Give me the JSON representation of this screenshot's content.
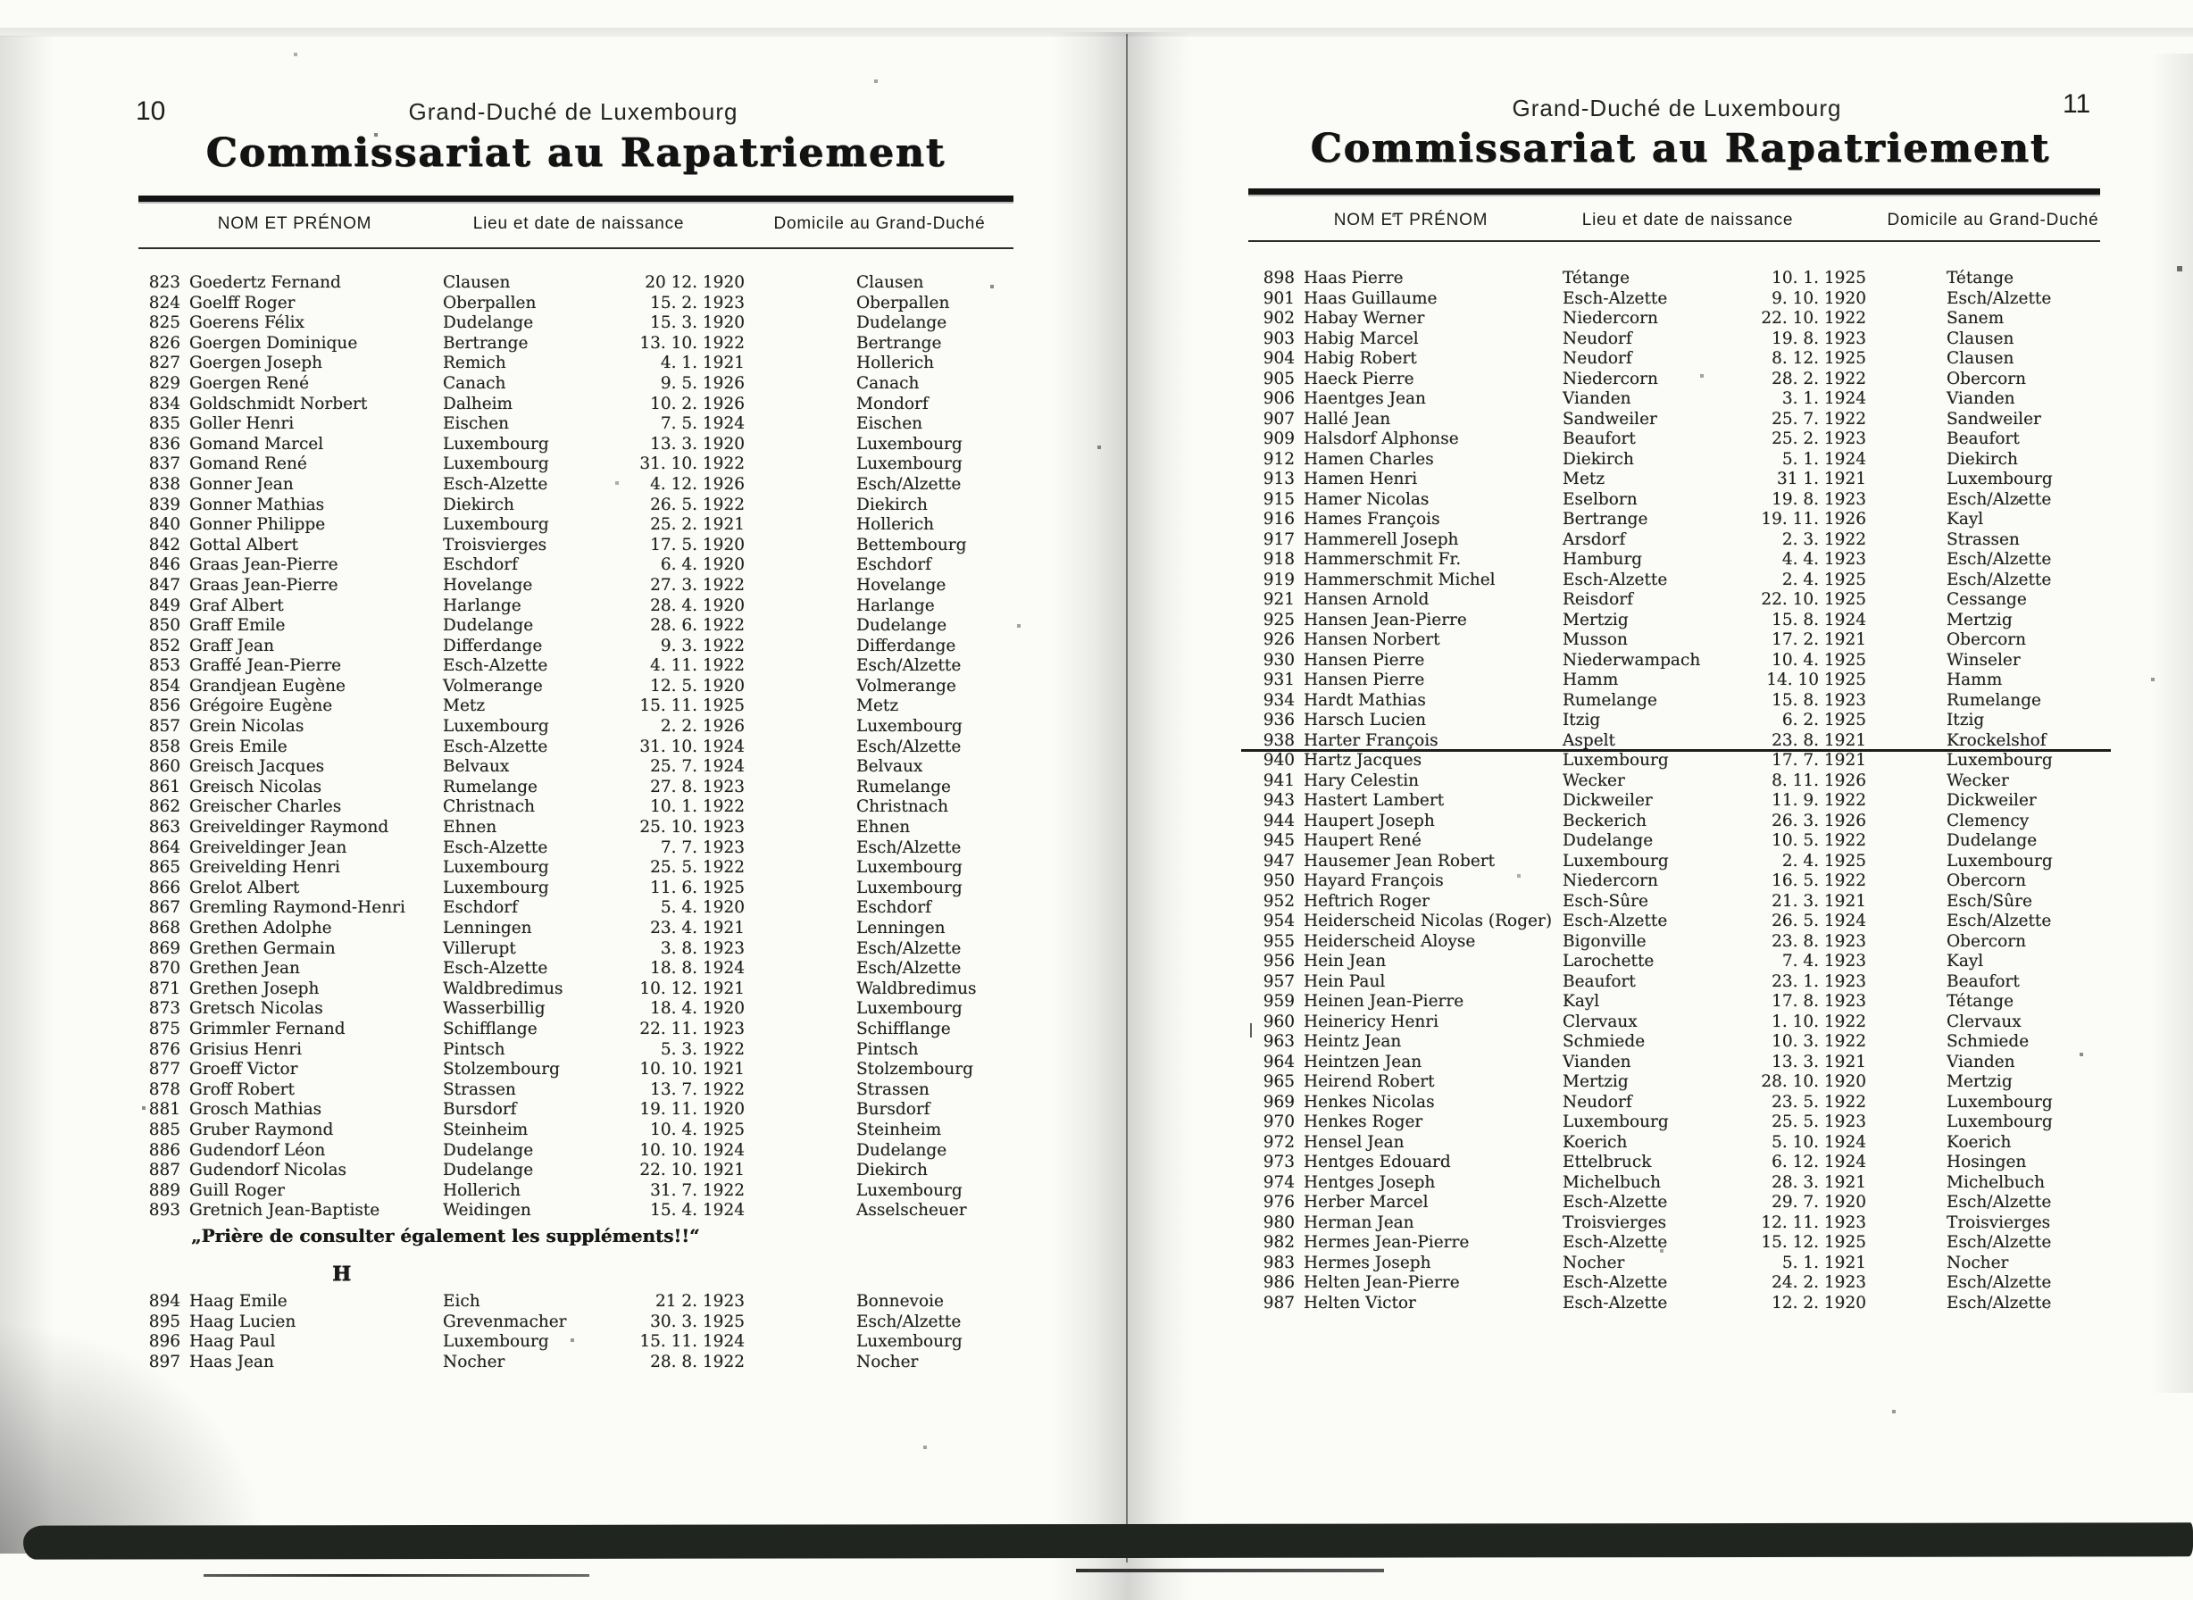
{
  "scan": {
    "left_page": {
      "page_number": "10",
      "header_subtitle": "Grand-Duché de Luxembourg",
      "title": "Commissariat au Rapatriement",
      "columns": [
        "NOM ET PRÉNOM",
        "Lieu et date de naissance",
        "Domicile au Grand-Duché"
      ],
      "rows": [
        [
          "823",
          "Goedertz Fernand",
          "Clausen",
          "20 12. 1920",
          "Clausen"
        ],
        [
          "824",
          "Goelff Roger",
          "Oberpallen",
          "15. 2. 1923",
          "Oberpallen"
        ],
        [
          "825",
          "Goerens Félix",
          "Dudelange",
          "15. 3. 1920",
          "Dudelange"
        ],
        [
          "826",
          "Goergen Dominique",
          "Bertrange",
          "13. 10. 1922",
          "Bertrange"
        ],
        [
          "827",
          "Goergen Joseph",
          "Remich",
          "4. 1. 1921",
          "Hollerich"
        ],
        [
          "829",
          "Goergen René",
          "Canach",
          "9. 5. 1926",
          "Canach"
        ],
        [
          "834",
          "Goldschmidt Norbert",
          "Dalheim",
          "10. 2. 1926",
          "Mondorf"
        ],
        [
          "835",
          "Goller Henri",
          "Eischen",
          "7. 5. 1924",
          "Eischen"
        ],
        [
          "836",
          "Gomand Marcel",
          "Luxembourg",
          "13. 3. 1920",
          "Luxembourg"
        ],
        [
          "837",
          "Gomand René",
          "Luxembourg",
          "31. 10. 1922",
          "Luxembourg"
        ],
        [
          "838",
          "Gonner Jean",
          "Esch-Alzette",
          "4. 12. 1926",
          "Esch/Alzette"
        ],
        [
          "839",
          "Gonner Mathias",
          "Diekirch",
          "26. 5. 1922",
          "Diekirch"
        ],
        [
          "840",
          "Gonner Philippe",
          "Luxembourg",
          "25. 2. 1921",
          "Hollerich"
        ],
        [
          "842",
          "Gottal Albert",
          "Troisvierges",
          "17. 5. 1920",
          "Bettembourg"
        ],
        [
          "846",
          "Graas Jean-Pierre",
          "Eschdorf",
          "6. 4. 1920",
          "Eschdorf"
        ],
        [
          "847",
          "Graas Jean-Pierre",
          "Hovelange",
          "27. 3. 1922",
          "Hovelange"
        ],
        [
          "849",
          "Graf Albert",
          "Harlange",
          "28. 4. 1920",
          "Harlange"
        ],
        [
          "850",
          "Graff Emile",
          "Dudelange",
          "28. 6. 1922",
          "Dudelange"
        ],
        [
          "852",
          "Graff Jean",
          "Differdange",
          "9. 3. 1922",
          "Differdange"
        ],
        [
          "853",
          "Graffé Jean-Pierre",
          "Esch-Alzette",
          "4. 11. 1922",
          "Esch/Alzette"
        ],
        [
          "854",
          "Grandjean Eugène",
          "Volmerange",
          "12. 5. 1920",
          "Volmerange"
        ],
        [
          "856",
          "Grégoire Eugène",
          "Metz",
          "15. 11. 1925",
          "Metz"
        ],
        [
          "857",
          "Grein Nicolas",
          "Luxembourg",
          "2. 2. 1926",
          "Luxembourg"
        ],
        [
          "858",
          "Greis Emile",
          "Esch-Alzette",
          "31. 10. 1924",
          "Esch/Alzette"
        ],
        [
          "860",
          "Greisch Jacques",
          "Belvaux",
          "25. 7. 1924",
          "Belvaux"
        ],
        [
          "861",
          "Greisch Nicolas",
          "Rumelange",
          "27. 8. 1923",
          "Rumelange"
        ],
        [
          "862",
          "Greischer Charles",
          "Christnach",
          "10. 1. 1922",
          "Christnach"
        ],
        [
          "863",
          "Greiveldinger Raymond",
          "Ehnen",
          "25. 10. 1923",
          "Ehnen"
        ],
        [
          "864",
          "Greiveldinger Jean",
          "Esch-Alzette",
          "7. 7. 1923",
          "Esch/Alzette"
        ],
        [
          "865",
          "Greivelding Henri",
          "Luxembourg",
          "25. 5. 1922",
          "Luxembourg"
        ],
        [
          "866",
          "Grelot Albert",
          "Luxembourg",
          "11. 6. 1925",
          "Luxembourg"
        ],
        [
          "867",
          "Gremling Raymond-Henri",
          "Eschdorf",
          "5. 4. 1920",
          "Eschdorf"
        ],
        [
          "868",
          "Grethen Adolphe",
          "Lenningen",
          "23. 4. 1921",
          "Lenningen"
        ],
        [
          "869",
          "Grethen Germain",
          "Villerupt",
          "3. 8. 1923",
          "Esch/Alzette"
        ],
        [
          "870",
          "Grethen Jean",
          "Esch-Alzette",
          "18. 8. 1924",
          "Esch/Alzette"
        ],
        [
          "871",
          "Grethen Joseph",
          "Waldbredimus",
          "10. 12. 1921",
          "Waldbredimus"
        ],
        [
          "873",
          "Gretsch Nicolas",
          "Wasserbillig",
          "18. 4. 1920",
          "Luxembourg"
        ],
        [
          "875",
          "Grimmler Fernand",
          "Schifflange",
          "22. 11. 1923",
          "Schifflange"
        ],
        [
          "876",
          "Grisius Henri",
          "Pintsch",
          "5. 3. 1922",
          "Pintsch"
        ],
        [
          "877",
          "Groeff Victor",
          "Stolzembourg",
          "10. 10. 1921",
          "Stolzembourg"
        ],
        [
          "878",
          "Groff Robert",
          "Strassen",
          "13. 7. 1922",
          "Strassen"
        ],
        [
          "881",
          "Grosch Mathias",
          "Bursdorf",
          "19. 11. 1920",
          "Bursdorf"
        ],
        [
          "885",
          "Gruber Raymond",
          "Steinheim",
          "10. 4. 1925",
          "Steinheim"
        ],
        [
          "886",
          "Gudendorf Léon",
          "Dudelange",
          "10. 10. 1924",
          "Dudelange"
        ],
        [
          "887",
          "Gudendorf Nicolas",
          "Dudelange",
          "22. 10. 1921",
          "Diekirch"
        ],
        [
          "889",
          "Guill Roger",
          "Hollerich",
          "31. 7. 1922",
          "Luxembourg"
        ],
        [
          "893",
          "Gretnich Jean-Baptiste",
          "Weidingen",
          "15. 4. 1924",
          "Asselscheuer"
        ]
      ],
      "note": "„Prière de consulter également les suppléments!!“",
      "section_letter": "H",
      "rows_after_note": [
        [
          "894",
          "Haag Emile",
          "Eich",
          "21 2. 1923",
          "Bonnevoie"
        ],
        [
          "895",
          "Haag Lucien",
          "Grevenmacher",
          "30. 3. 1925",
          "Esch/Alzette"
        ],
        [
          "896",
          "Haag Paul",
          "Luxembourg",
          "15. 11. 1924",
          "Luxembourg"
        ],
        [
          "897",
          "Haas Jean",
          "Nocher",
          "28. 8. 1922",
          "Nocher"
        ]
      ]
    },
    "right_page": {
      "page_number": "11",
      "header_subtitle": "Grand-Duché de Luxembourg",
      "title": "Commissariat au Rapatriement",
      "columns": [
        "NOM ET PRÉNOM",
        "Lieu et date de naissance",
        "Domicile au Grand-Duché"
      ],
      "separator_after_row": "938",
      "rows": [
        [
          "898",
          "Haas Pierre",
          "Tétange",
          "10. 1. 1925",
          "Tétange"
        ],
        [
          "901",
          "Haas Guillaume",
          "Esch-Alzette",
          "9. 10. 1920",
          "Esch/Alzette"
        ],
        [
          "902",
          "Habay Werner",
          "Niedercorn",
          "22. 10. 1922",
          "Sanem"
        ],
        [
          "903",
          "Habig Marcel",
          "Neudorf",
          "19. 8. 1923",
          "Clausen"
        ],
        [
          "904",
          "Habig Robert",
          "Neudorf",
          "8. 12. 1925",
          "Clausen"
        ],
        [
          "905",
          "Haeck Pierre",
          "Niedercorn",
          "28. 2. 1922",
          "Obercorn"
        ],
        [
          "906",
          "Haentges Jean",
          "Vianden",
          "3. 1. 1924",
          "Vianden"
        ],
        [
          "907",
          "Hallé Jean",
          "Sandweiler",
          "25. 7. 1922",
          "Sandweiler"
        ],
        [
          "909",
          "Halsdorf Alphonse",
          "Beaufort",
          "25. 2. 1923",
          "Beaufort"
        ],
        [
          "912",
          "Hamen Charles",
          "Diekirch",
          "5. 1. 1924",
          "Diekirch"
        ],
        [
          "913",
          "Hamen Henri",
          "Metz",
          "31 1. 1921",
          "Luxembourg"
        ],
        [
          "915",
          "Hamer Nicolas",
          "Eselborn",
          "19. 8. 1923",
          "Esch/Alzette"
        ],
        [
          "916",
          "Hames François",
          "Bertrange",
          "19. 11. 1926",
          "Kayl"
        ],
        [
          "917",
          "Hammerell Joseph",
          "Arsdorf",
          "2. 3. 1922",
          "Strassen"
        ],
        [
          "918",
          "Hammerschmit Fr.",
          "Hamburg",
          "4. 4. 1923",
          "Esch/Alzette"
        ],
        [
          "919",
          "Hammerschmit Michel",
          "Esch-Alzette",
          "2. 4. 1925",
          "Esch/Alzette"
        ],
        [
          "921",
          "Hansen Arnold",
          "Reisdorf",
          "22. 10. 1925",
          "Cessange"
        ],
        [
          "925",
          "Hansen Jean-Pierre",
          "Mertzig",
          "15. 8. 1924",
          "Mertzig"
        ],
        [
          "926",
          "Hansen Norbert",
          "Musson",
          "17. 2. 1921",
          "Obercorn"
        ],
        [
          "930",
          "Hansen Pierre",
          "Niederwampach",
          "10. 4. 1925",
          "Winseler"
        ],
        [
          "931",
          "Hansen Pierre",
          "Hamm",
          "14. 10 1925",
          "Hamm"
        ],
        [
          "934",
          "Hardt Mathias",
          "Rumelange",
          "15. 8. 1923",
          "Rumelange"
        ],
        [
          "936",
          "Harsch Lucien",
          "Itzig",
          "6. 2. 1925",
          "Itzig"
        ],
        [
          "938",
          "Harter François",
          "Aspelt",
          "23. 8. 1921",
          "Krockelshof"
        ],
        [
          "940",
          "Hartz Jacques",
          "Luxembourg",
          "17. 7. 1921",
          "Luxembourg"
        ],
        [
          "941",
          "Hary Celestin",
          "Wecker",
          "8. 11. 1926",
          "Wecker"
        ],
        [
          "943",
          "Hastert Lambert",
          "Dickweiler",
          "11. 9. 1922",
          "Dickweiler"
        ],
        [
          "944",
          "Haupert Joseph",
          "Beckerich",
          "26. 3. 1926",
          "Clemency"
        ],
        [
          "945",
          "Haupert René",
          "Dudelange",
          "10. 5. 1922",
          "Dudelange"
        ],
        [
          "947",
          "Hausemer Jean Robert",
          "Luxembourg",
          "2. 4. 1925",
          "Luxembourg"
        ],
        [
          "950",
          "Hayard François",
          "Niedercorn",
          "16. 5. 1922",
          "Obercorn"
        ],
        [
          "952",
          "Heftrich Roger",
          "Esch-Sûre",
          "21. 3. 1921",
          "Esch/Sûre"
        ],
        [
          "954",
          "Heiderscheid Nicolas (Roger)",
          "Esch-Alzette",
          "26. 5. 1924",
          "Esch/Alzette"
        ],
        [
          "955",
          "Heiderscheid Aloyse",
          "Bigonville",
          "23. 8. 1923",
          "Obercorn"
        ],
        [
          "956",
          "Hein Jean",
          "Larochette",
          "7. 4. 1923",
          "Kayl"
        ],
        [
          "957",
          "Hein Paul",
          "Beaufort",
          "23. 1. 1923",
          "Beaufort"
        ],
        [
          "959",
          "Heinen Jean-Pierre",
          "Kayl",
          "17. 8. 1923",
          "Tétange"
        ],
        [
          "960",
          "Heinericy Henri",
          "Clervaux",
          "1. 10. 1922",
          "Clervaux"
        ],
        [
          "963",
          "Heintz Jean",
          "Schmiede",
          "10. 3. 1922",
          "Schmiede"
        ],
        [
          "964",
          "Heintzen Jean",
          "Vianden",
          "13. 3. 1921",
          "Vianden"
        ],
        [
          "965",
          "Heirend Robert",
          "Mertzig",
          "28. 10. 1920",
          "Mertzig"
        ],
        [
          "969",
          "Henkes Nicolas",
          "Neudorf",
          "23. 5. 1922",
          "Luxembourg"
        ],
        [
          "970",
          "Henkes Roger",
          "Luxembourg",
          "25. 5. 1923",
          "Luxembourg"
        ],
        [
          "972",
          "Hensel Jean",
          "Koerich",
          "5. 10. 1924",
          "Koerich"
        ],
        [
          "973",
          "Hentges Edouard",
          "Ettelbruck",
          "6. 12. 1924",
          "Hosingen"
        ],
        [
          "974",
          "Hentges Joseph",
          "Michelbuch",
          "28. 3. 1921",
          "Michelbuch"
        ],
        [
          "976",
          "Herber Marcel",
          "Esch-Alzette",
          "29. 7. 1920",
          "Esch/Alzette"
        ],
        [
          "980",
          "Herman Jean",
          "Troisvierges",
          "12. 11. 1923",
          "Troisvierges"
        ],
        [
          "982",
          "Hermes Jean-Pierre",
          "Esch-Alzette",
          "15. 12. 1925",
          "Esch/Alzette"
        ],
        [
          "983",
          "Hermes Joseph",
          "Nocher",
          "5. 1. 1921",
          "Nocher"
        ],
        [
          "986",
          "Helten Jean-Pierre",
          "Esch-Alzette",
          "24. 2. 1923",
          "Esch/Alzette"
        ],
        [
          "987",
          "Helten Victor",
          "Esch-Alzette",
          "12. 2. 1920",
          "Esch/Alzette"
        ]
      ]
    }
  }
}
